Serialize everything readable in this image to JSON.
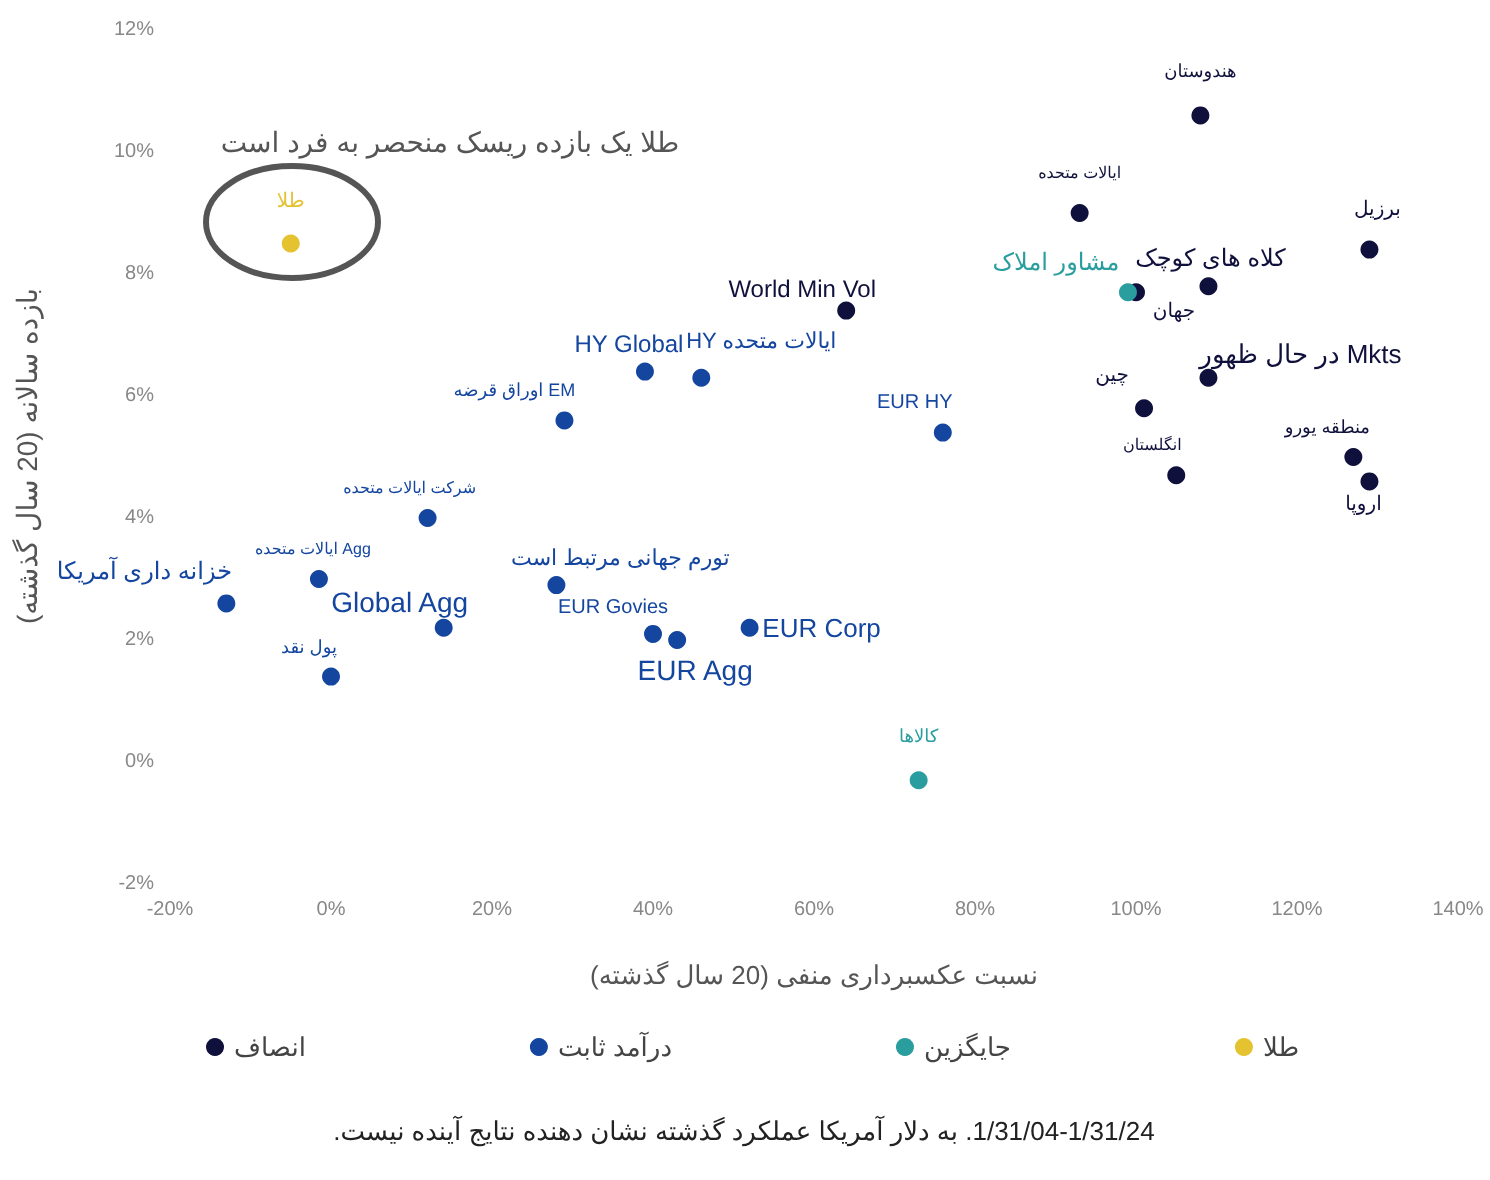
{
  "chart_data": {
    "type": "scatter",
    "xlabel": "نسبت عکسبرداری منفی (20 سال گذشته)",
    "ylabel": "بازده سالانه (20 سال گذشته)",
    "xlim": [
      -20,
      140
    ],
    "ylim": [
      -2,
      12
    ],
    "xticks": [
      {
        "value": -20,
        "label": "-20%"
      },
      {
        "value": 0,
        "label": "0%"
      },
      {
        "value": 20,
        "label": "20%"
      },
      {
        "value": 40,
        "label": "40%"
      },
      {
        "value": 60,
        "label": "60%"
      },
      {
        "value": 80,
        "label": "80%"
      },
      {
        "value": 100,
        "label": "100%"
      },
      {
        "value": 120,
        "label": "120%"
      },
      {
        "value": 140,
        "label": "140%"
      }
    ],
    "yticks": [
      {
        "value": -2,
        "label": "-2%"
      },
      {
        "value": 0,
        "label": "0%"
      },
      {
        "value": 2,
        "label": "2%"
      },
      {
        "value": 4,
        "label": "4%"
      },
      {
        "value": 6,
        "label": "6%"
      },
      {
        "value": 8,
        "label": "8%"
      },
      {
        "value": 10,
        "label": "10%"
      },
      {
        "value": 12,
        "label": "12%"
      }
    ],
    "grid": false,
    "legend": "bottom",
    "marker": "circle",
    "series": [
      {
        "name": "انصاف",
        "color": "#10103c",
        "x": [
          108,
          93,
          129,
          109,
          100,
          64,
          109,
          101,
          105,
          127,
          129
        ],
        "values": [
          10.6,
          9.0,
          8.4,
          7.8,
          7.7,
          7.4,
          6.3,
          5.8,
          4.7,
          5.0,
          4.6
        ]
      },
      {
        "name": "درآمد ثابت",
        "color": "#1446a0",
        "x": [
          -13,
          -1.5,
          0,
          14,
          12,
          29,
          39,
          46,
          76,
          28,
          40,
          43,
          52
        ],
        "values": [
          2.6,
          3.0,
          1.4,
          2.2,
          4.0,
          5.6,
          6.4,
          6.3,
          5.4,
          2.9,
          2.1,
          2.0,
          2.2
        ]
      },
      {
        "name": "جایگزین",
        "color": "#2a9d9f",
        "x": [
          99,
          73
        ],
        "values": [
          7.7,
          -0.3
        ]
      },
      {
        "name": "طلا",
        "color": "#e5c22f",
        "x": [
          -5
        ],
        "values": [
          8.5
        ]
      }
    ],
    "annotations": [
      {
        "text": "هندوستان",
        "x": 108,
        "y": 10.6
      },
      {
        "text": "ایالات متحده",
        "x": 93,
        "y": 9.0
      },
      {
        "text": "برزیل",
        "x": 129,
        "y": 8.4
      },
      {
        "text": "کلاه های کوچک",
        "x": 109,
        "y": 7.8
      },
      {
        "text": "جهان",
        "x": 100,
        "y": 7.7
      },
      {
        "text": "World Min Vol",
        "x": 64,
        "y": 7.4
      },
      {
        "text": "در حال ظهور Mkts",
        "x": 109,
        "y": 6.3
      },
      {
        "text": "چین",
        "x": 101,
        "y": 5.8
      },
      {
        "text": "انگلستان",
        "x": 105,
        "y": 4.7
      },
      {
        "text": "منطقه یورو",
        "x": 127,
        "y": 5.0
      },
      {
        "text": "اروپا",
        "x": 129,
        "y": 4.6
      },
      {
        "text": "خزانه داری آمریکا",
        "x": -13,
        "y": 2.6
      },
      {
        "text": "ایالات متحده Agg",
        "x": -1.5,
        "y": 3.0
      },
      {
        "text": "پول نقد",
        "x": 0,
        "y": 1.4
      },
      {
        "text": "Global Agg",
        "x": 14,
        "y": 2.2
      },
      {
        "text": "شرکت ایالات متحده",
        "x": 12,
        "y": 4.0
      },
      {
        "text": "اوراق قرضه EM",
        "x": 29,
        "y": 5.6
      },
      {
        "text": "HY Global",
        "x": 39,
        "y": 6.4
      },
      {
        "text": "HY ایالات متحده",
        "x": 46,
        "y": 6.3
      },
      {
        "text": "EUR HY",
        "x": 76,
        "y": 5.4
      },
      {
        "text": "تورم جهانی مرتبط است",
        "x": 28,
        "y": 2.9
      },
      {
        "text": "EUR Govies",
        "x": 40,
        "y": 2.1
      },
      {
        "text": "EUR Agg",
        "x": 43,
        "y": 2.0
      },
      {
        "text": "EUR Corp",
        "x": 52,
        "y": 2.2
      },
      {
        "text": "مشاور املاک",
        "x": 99,
        "y": 7.7
      },
      {
        "text": "کالاها",
        "x": 73,
        "y": -0.3
      },
      {
        "text": "طلا",
        "x": -5,
        "y": 8.5
      },
      "طلا یک بازده ریسک منحصر به فرد است",
      "1/31/04-1/31/24. به دلار آمریکا عملکرد گذشته نشان دهنده نتایج آینده نیست."
    ]
  }
}
